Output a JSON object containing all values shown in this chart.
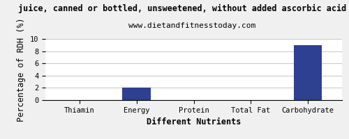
{
  "title": "juice, canned or bottled, unsweetened, without added ascorbic acid per",
  "subtitle": "www.dietandfitnesstoday.com",
  "xlabel": "Different Nutrients",
  "ylabel": "Percentage of RDH (%)",
  "categories": [
    "Thiamin",
    "Energy",
    "Protein",
    "Total Fat",
    "Carbohydrate"
  ],
  "values": [
    0.0,
    2.0,
    0.0,
    0.0,
    9.0
  ],
  "bar_color": "#2e4090",
  "ylim": [
    0,
    10
  ],
  "yticks": [
    0,
    2,
    4,
    6,
    8,
    10
  ],
  "background_color": "#f0f0f0",
  "plot_bg_color": "#ffffff",
  "title_fontsize": 8.5,
  "subtitle_fontsize": 8,
  "axis_label_fontsize": 8.5,
  "tick_fontsize": 7.5
}
